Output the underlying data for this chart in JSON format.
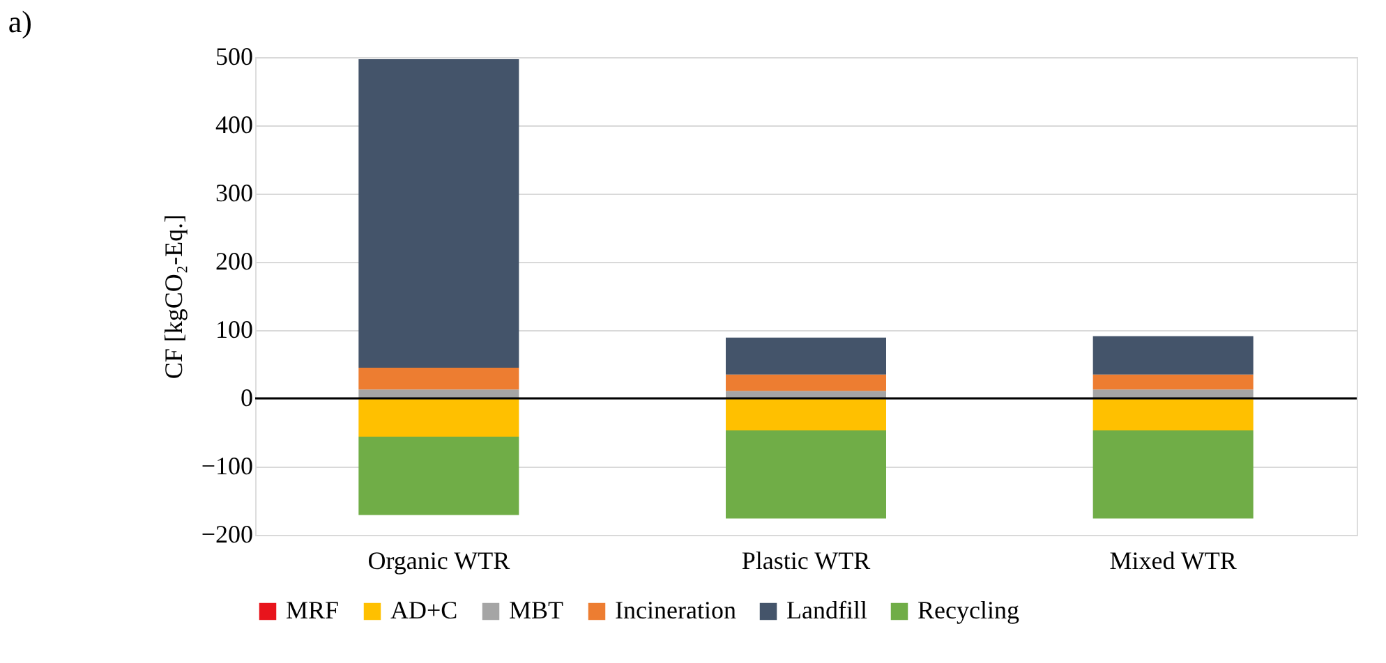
{
  "chart_data": {
    "type": "bar",
    "stacked": true,
    "ylabel": "CF [kgCO₂-Eq.]",
    "annotations": [
      "a)"
    ],
    "categories": [
      "Organic WTR",
      "Plastic WTR",
      "Mixed WTR"
    ],
    "series": [
      {
        "name": "MRF",
        "color": "#e8141c",
        "values": [
          0,
          0,
          0
        ]
      },
      {
        "name": "AD+C",
        "color": "#ffc000",
        "values": [
          -56,
          -47,
          -47
        ]
      },
      {
        "name": "MBT",
        "color": "#a5a5a5",
        "values": [
          13,
          11,
          13
        ]
      },
      {
        "name": "Incineration",
        "color": "#ed7d31",
        "values": [
          32,
          24,
          22
        ]
      },
      {
        "name": "Landfill",
        "color": "#44546a",
        "values": [
          452,
          54,
          56
        ]
      },
      {
        "name": "Recycling",
        "color": "#70ad47",
        "values": [
          -115,
          -129,
          -129
        ]
      }
    ],
    "ylim": [
      -200,
      500
    ],
    "yticks": [
      -200,
      -100,
      0,
      100,
      200,
      300,
      400,
      500
    ],
    "grid": "y",
    "legend": "bottom",
    "ref_lines": [
      {
        "axis": "y",
        "value": 0,
        "color": "#000000"
      }
    ]
  }
}
